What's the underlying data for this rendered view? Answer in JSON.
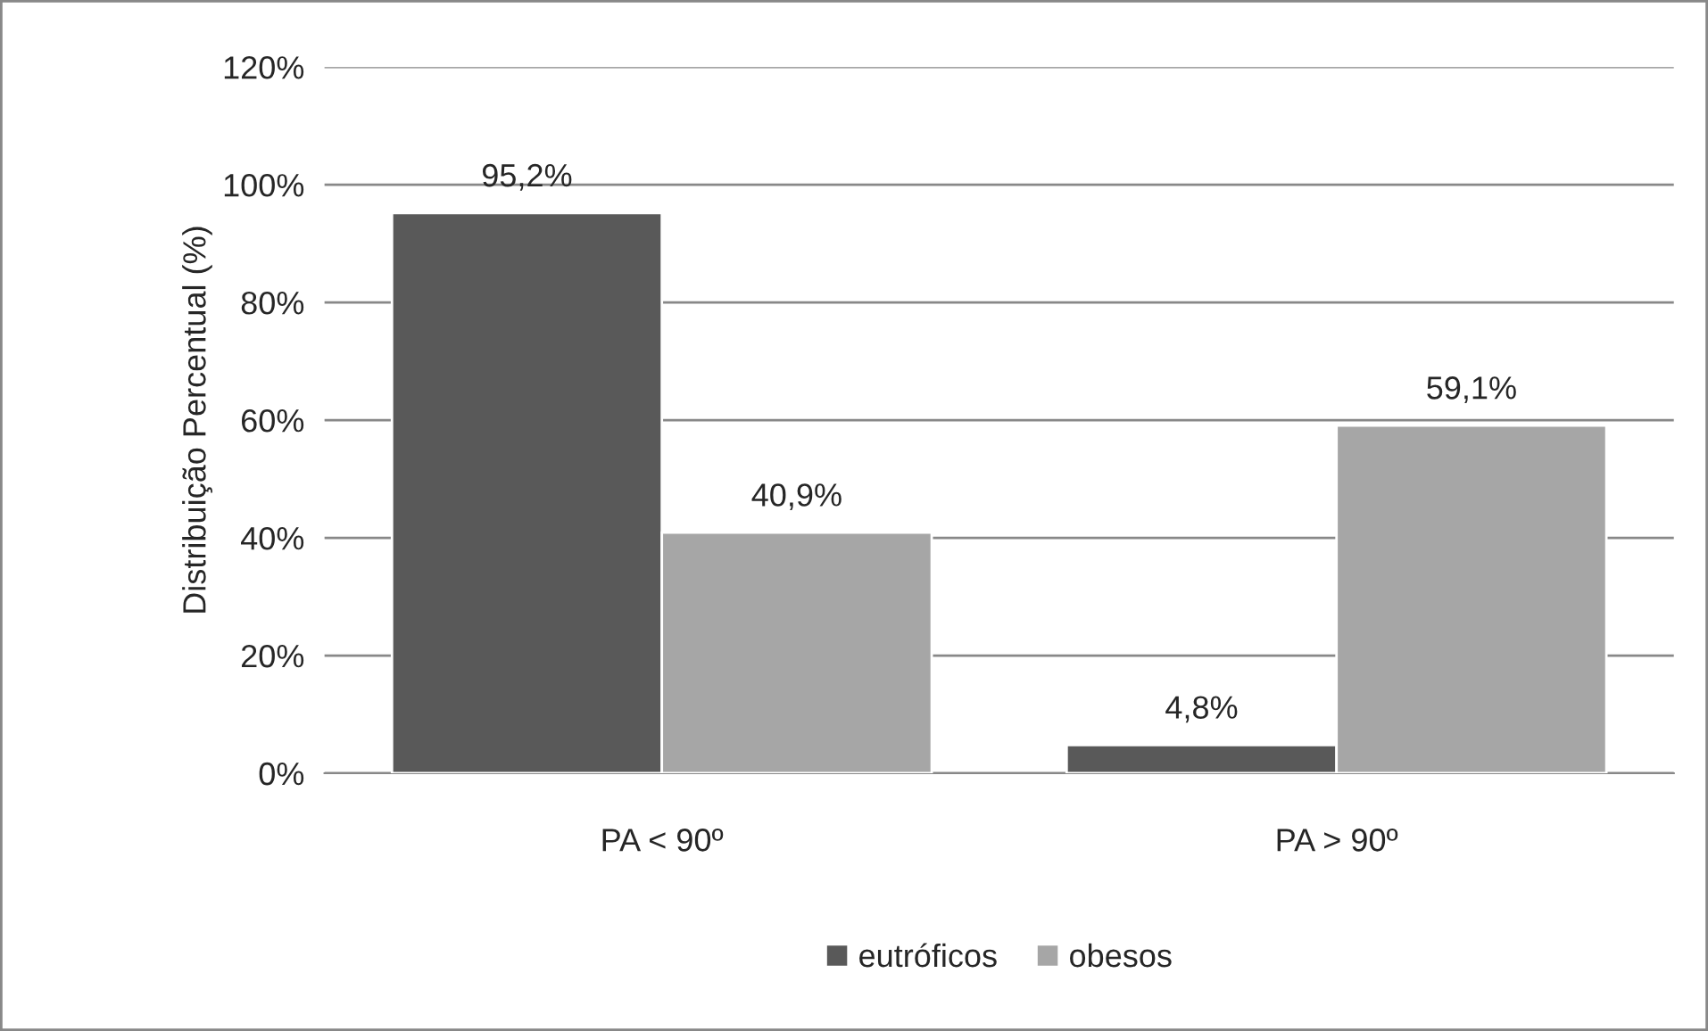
{
  "chart_data": {
    "type": "bar",
    "ylabel": "Distribuição Percentual (%)",
    "categories": [
      "PA < 90º",
      "PA > 90º"
    ],
    "series": [
      {
        "name": "eutróficos",
        "color": "#595959",
        "values": [
          95.2,
          4.8
        ],
        "value_labels": [
          "95,2%",
          "4,8%"
        ]
      },
      {
        "name": "obesos",
        "color": "#a6a6a6",
        "values": [
          40.9,
          59.1
        ],
        "value_labels": [
          "40,9%",
          "59,1%"
        ]
      }
    ],
    "ylim": [
      0,
      120
    ],
    "yticks": [
      {
        "value": 0,
        "label": "0%"
      },
      {
        "value": 20,
        "label": "20%"
      },
      {
        "value": 40,
        "label": "40%"
      },
      {
        "value": 60,
        "label": "60%"
      },
      {
        "value": 80,
        "label": "80%"
      },
      {
        "value": 100,
        "label": "100%"
      },
      {
        "value": 120,
        "label": "120%"
      }
    ],
    "grid": "y",
    "legend": "bottom"
  }
}
